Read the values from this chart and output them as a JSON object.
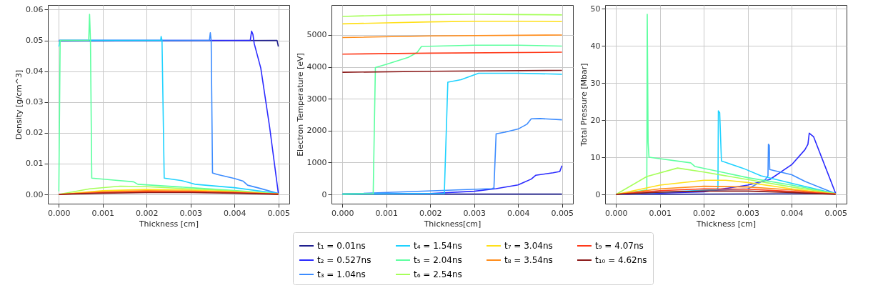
{
  "chart_data": [
    {
      "type": "line",
      "xlabel": "Thickness [cm]",
      "ylabel": "Density [g/cm^3]",
      "xlim": [
        -0.00025,
        0.00525
      ],
      "ylim": [
        -0.003,
        0.0615
      ],
      "xticks": [
        {
          "value": 0,
          "label": "0.000"
        },
        {
          "value": 0.001,
          "label": "0.001"
        },
        {
          "value": 0.002,
          "label": "0.002"
        },
        {
          "value": 0.003,
          "label": "0.003"
        },
        {
          "value": 0.004,
          "label": "0.004"
        },
        {
          "value": 0.005,
          "label": "0.005"
        }
      ],
      "yticks": [
        {
          "value": 0,
          "label": "0.00"
        },
        {
          "value": 0.01,
          "label": "0.01"
        },
        {
          "value": 0.02,
          "label": "0.02"
        },
        {
          "value": 0.03,
          "label": "0.03"
        },
        {
          "value": 0.04,
          "label": "0.04"
        },
        {
          "value": 0.05,
          "label": "0.05"
        },
        {
          "value": 0.06,
          "label": "0.06"
        }
      ],
      "grid": true,
      "legend": "bottom",
      "series": [
        {
          "name": "t₁ = 0.01ns",
          "color": "#1f1f8f",
          "x": [
            0,
            0.00497,
            0.005
          ],
          "values": [
            0.0498,
            0.05,
            0.048
          ]
        },
        {
          "name": "t₂ = 0.527ns",
          "color": "#2a2aff",
          "x": [
            0,
            0.00436,
            0.00439,
            0.00442,
            0.00445,
            0.0046,
            0.0048,
            0.005
          ],
          "values": [
            0.05,
            0.05,
            0.053,
            0.052,
            0.049,
            0.041,
            0.022,
            0.0003
          ]
        },
        {
          "name": "t₃ = 1.04ns",
          "color": "#3c8cff",
          "x": [
            0,
            0.00343,
            0.00345,
            0.00347,
            0.0035,
            0.0036,
            0.004,
            0.0042,
            0.0043,
            0.0046,
            0.005
          ],
          "values": [
            0.05,
            0.05,
            0.0525,
            0.05,
            0.007,
            0.0065,
            0.0052,
            0.0043,
            0.003,
            0.0019,
            0.0003
          ]
        },
        {
          "name": "t₄ = 1.54ns",
          "color": "#1ed2ff",
          "x": [
            0,
            3e-05,
            0.00232,
            0.00233,
            0.00235,
            0.0024,
            0.0028,
            0.0031,
            0.004,
            0.005
          ],
          "values": [
            0.048,
            0.05,
            0.05,
            0.0513,
            0.05,
            0.0053,
            0.0045,
            0.0033,
            0.0022,
            0.0003
          ]
        },
        {
          "name": "t₅ = 2.04ns",
          "color": "#5effa0",
          "x": [
            0,
            3e-05,
            0.00068,
            0.0007,
            0.00072,
            0.00075,
            0.0012,
            0.0017,
            0.0018,
            0.003,
            0.004,
            0.005
          ],
          "values": [
            0.001,
            0.05,
            0.05,
            0.0585,
            0.05,
            0.0053,
            0.0047,
            0.0041,
            0.0033,
            0.0022,
            0.0013,
            0.0002
          ]
        },
        {
          "name": "t₆ = 2.54ns",
          "color": "#a6ff5a",
          "x": [
            0,
            0.0007,
            0.0014,
            0.002,
            0.003,
            0.004,
            0.005
          ],
          "values": [
            0,
            0.0018,
            0.0027,
            0.0025,
            0.0018,
            0.0011,
            0.0002
          ]
        },
        {
          "name": "t₇ = 3.04ns",
          "color": "#ffe01a",
          "x": [
            0,
            0.001,
            0.002,
            0.003,
            0.004,
            0.005
          ],
          "values": [
            0,
            0.0012,
            0.0016,
            0.0014,
            0.0009,
            0.0001
          ]
        },
        {
          "name": "t₈ = 3.54ns",
          "color": "#ff8c1a",
          "x": [
            0,
            0.001,
            0.002,
            0.003,
            0.004,
            0.005
          ],
          "values": [
            0,
            0.0009,
            0.0012,
            0.0011,
            0.0007,
            0.0001
          ]
        },
        {
          "name": "t₉ = 4.07ns",
          "color": "#ff3a1a",
          "x": [
            0,
            0.001,
            0.002,
            0.003,
            0.004,
            0.005
          ],
          "values": [
            0,
            0.0006,
            0.0009,
            0.0009,
            0.0006,
            0.0001
          ]
        },
        {
          "name": "t₁₀ = 4.62ns",
          "color": "#8b1a1a",
          "x": [
            0,
            0.001,
            0.002,
            0.003,
            0.004,
            0.005
          ],
          "values": [
            0,
            0.0004,
            0.0006,
            0.0006,
            0.0004,
            0
          ]
        }
      ]
    },
    {
      "type": "line",
      "xlabel": "Thickness[cm]",
      "ylabel": "Electron Temperature [eV]",
      "xlim": [
        -0.00025,
        0.00525
      ],
      "ylim": [
        -290,
        5940
      ],
      "xticks": [
        {
          "value": 0,
          "label": "0.000"
        },
        {
          "value": 0.001,
          "label": "0.001"
        },
        {
          "value": 0.002,
          "label": "0.002"
        },
        {
          "value": 0.003,
          "label": "0.003"
        },
        {
          "value": 0.004,
          "label": "0.004"
        },
        {
          "value": 0.005,
          "label": "0.005"
        }
      ],
      "yticks": [
        0,
        1000,
        2000,
        3000,
        4000,
        5000
      ],
      "grid": true,
      "legend": "bottom",
      "series": [
        {
          "name": "t₁ = 0.01ns",
          "color": "#1f1f8f",
          "x": [
            0,
            0.005
          ],
          "values": [
            10,
            10
          ]
        },
        {
          "name": "t₂ = 0.527ns",
          "color": "#2a2aff",
          "x": [
            0,
            0.002,
            0.003,
            0.0035,
            0.004,
            0.0043,
            0.0044,
            0.0048,
            0.00495,
            0.005
          ],
          "values": [
            10,
            30,
            100,
            180,
            300,
            480,
            600,
            680,
            720,
            900
          ]
        },
        {
          "name": "t₃ = 1.04ns",
          "color": "#3c8cff",
          "x": [
            0,
            0.0034,
            0.00345,
            0.0035,
            0.0037,
            0.004,
            0.0042,
            0.0043,
            0.0045,
            0.005
          ],
          "values": [
            10,
            180,
            200,
            1900,
            1950,
            2050,
            2200,
            2370,
            2380,
            2340
          ]
        },
        {
          "name": "t₄ = 1.54ns",
          "color": "#1ed2ff",
          "x": [
            0,
            0.00232,
            0.0024,
            0.0027,
            0.003,
            0.0031,
            0.004,
            0.005
          ],
          "values": [
            10,
            30,
            3520,
            3600,
            3750,
            3800,
            3800,
            3770
          ]
        },
        {
          "name": "t₅ = 2.04ns",
          "color": "#5effa0",
          "x": [
            0,
            0.0007,
            0.00075,
            0.001,
            0.0015,
            0.0017,
            0.0018,
            0.003,
            0.004,
            0.005
          ],
          "values": [
            10,
            20,
            3980,
            4080,
            4300,
            4450,
            4640,
            4680,
            4680,
            4650
          ]
        },
        {
          "name": "t₆ = 2.54ns",
          "color": "#a6ff5a",
          "x": [
            0,
            0.001,
            0.002,
            0.003,
            0.004,
            0.005
          ],
          "values": [
            5580,
            5620,
            5640,
            5650,
            5640,
            5630
          ]
        },
        {
          "name": "t₇ = 3.04ns",
          "color": "#ffe01a",
          "x": [
            0,
            0.001,
            0.002,
            0.003,
            0.004,
            0.005
          ],
          "values": [
            5350,
            5380,
            5410,
            5430,
            5430,
            5420
          ]
        },
        {
          "name": "t₈ = 3.54ns",
          "color": "#ff8c1a",
          "x": [
            0,
            0.002,
            0.005
          ],
          "values": [
            4920,
            4970,
            5000
          ]
        },
        {
          "name": "t₉ = 4.07ns",
          "color": "#ff3a1a",
          "x": [
            0,
            0.002,
            0.005
          ],
          "values": [
            4400,
            4430,
            4460
          ]
        },
        {
          "name": "t₁₀ = 4.62ns",
          "color": "#8b1a1a",
          "x": [
            0,
            0.002,
            0.005
          ],
          "values": [
            3830,
            3860,
            3890
          ]
        }
      ]
    },
    {
      "type": "line",
      "xlabel": "Thickness [cm]",
      "ylabel": "Total Pressure [Mbar]",
      "xlim": [
        -0.00025,
        0.00525
      ],
      "ylim": [
        -2.5,
        51
      ],
      "xticks": [
        {
          "value": 0,
          "label": "0.000"
        },
        {
          "value": 0.001,
          "label": "0.001"
        },
        {
          "value": 0.002,
          "label": "0.002"
        },
        {
          "value": 0.003,
          "label": "0.003"
        },
        {
          "value": 0.004,
          "label": "0.004"
        },
        {
          "value": 0.005,
          "label": "0.005"
        }
      ],
      "yticks": [
        0,
        10,
        20,
        30,
        40,
        50
      ],
      "grid": true,
      "legend": "bottom",
      "series": [
        {
          "name": "t₁ = 0.01ns",
          "color": "#1f1f8f",
          "x": [
            0,
            0.005
          ],
          "values": [
            0,
            0.2
          ]
        },
        {
          "name": "t₂ = 0.527ns",
          "color": "#2a2aff",
          "x": [
            0,
            0.002,
            0.003,
            0.0035,
            0.004,
            0.0043,
            0.00437,
            0.0044,
            0.0045,
            0.005
          ],
          "values": [
            0,
            0.7,
            2.5,
            4,
            8,
            12,
            13.5,
            16.5,
            15.5,
            0.3
          ]
        },
        {
          "name": "t₃ = 1.04ns",
          "color": "#3c8cff",
          "x": [
            0,
            0.003,
            0.0034,
            0.00346,
            0.00347,
            0.00349,
            0.0035,
            0.004,
            0.0043,
            0.005
          ],
          "values": [
            0,
            1.5,
            4,
            5,
            13.5,
            13.2,
            6.7,
            5.3,
            3.5,
            0.2
          ]
        },
        {
          "name": "t₄ = 1.54ns",
          "color": "#1ed2ff",
          "x": [
            0,
            0.0023,
            0.00232,
            0.00233,
            0.00236,
            0.0024,
            0.0029,
            0.0033,
            0.004,
            0.005
          ],
          "values": [
            0,
            1.3,
            1.8,
            22.5,
            22,
            9,
            7,
            5,
            3,
            0.2
          ]
        },
        {
          "name": "t₅ = 2.04ns",
          "color": "#5effa0",
          "x": [
            0,
            0.0007,
            0.00071,
            0.00073,
            0.00075,
            0.0017,
            0.0018,
            0.003,
            0.004,
            0.005
          ],
          "values": [
            0,
            1.2,
            48.5,
            14,
            10,
            8.5,
            7.5,
            4.5,
            2.5,
            0.2
          ]
        },
        {
          "name": "t₆ = 2.54ns",
          "color": "#a6ff5a",
          "x": [
            0,
            0.0007,
            0.0014,
            0.002,
            0.003,
            0.004,
            0.005
          ],
          "values": [
            0,
            4.8,
            7.1,
            6,
            4,
            2,
            0.2
          ]
        },
        {
          "name": "t₇ = 3.04ns",
          "color": "#ffe01a",
          "x": [
            0,
            0.001,
            0.002,
            0.0025,
            0.003,
            0.004,
            0.005
          ],
          "values": [
            0,
            2.5,
            3.8,
            3.8,
            3.2,
            1.5,
            0.1
          ]
        },
        {
          "name": "t₈ = 3.54ns",
          "color": "#ff8c1a",
          "x": [
            0,
            0.001,
            0.002,
            0.003,
            0.004,
            0.005
          ],
          "values": [
            0,
            1.5,
            2.2,
            2,
            1.2,
            0.1
          ]
        },
        {
          "name": "t₉ = 4.07ns",
          "color": "#ff3a1a",
          "x": [
            0,
            0.001,
            0.002,
            0.003,
            0.004,
            0.005
          ],
          "values": [
            0,
            1,
            1.5,
            1.4,
            0.8,
            0.1
          ]
        },
        {
          "name": "t₁₀ = 4.62ns",
          "color": "#8b1a1a",
          "x": [
            0,
            0.001,
            0.002,
            0.003,
            0.004,
            0.005
          ],
          "values": [
            0,
            0.6,
            0.9,
            0.9,
            0.5,
            0
          ]
        }
      ]
    }
  ]
}
